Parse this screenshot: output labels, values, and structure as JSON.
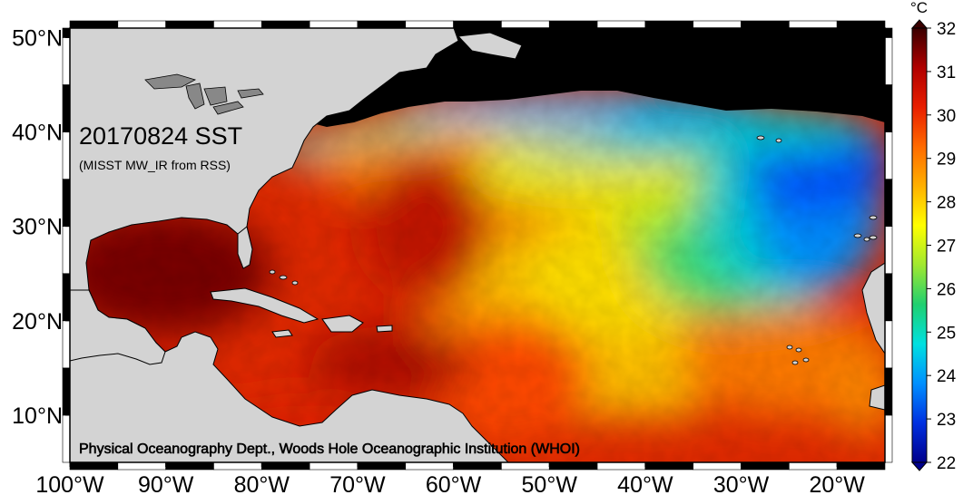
{
  "map": {
    "title": "20170824 SST",
    "subtitle": "(MISST MW_IR from RSS)",
    "credit": "Physical Oceanography Dept., Woods Hole Oceanographic Institution (WHOI)",
    "lat_ticks": [
      {
        "value": 50,
        "label": "50°N"
      },
      {
        "value": 40,
        "label": "40°N"
      },
      {
        "value": 30,
        "label": "30°N"
      },
      {
        "value": 20,
        "label": "20°N"
      },
      {
        "value": 10,
        "label": "10°N"
      }
    ],
    "lon_ticks": [
      {
        "value": -100,
        "label": "100°W"
      },
      {
        "value": -90,
        "label": "90°W"
      },
      {
        "value": -80,
        "label": "80°W"
      },
      {
        "value": -70,
        "label": "70°W"
      },
      {
        "value": -60,
        "label": "60°W"
      },
      {
        "value": -50,
        "label": "50°W"
      },
      {
        "value": -40,
        "label": "40°W"
      },
      {
        "value": -30,
        "label": "30°W"
      },
      {
        "value": -20,
        "label": "20°W"
      }
    ],
    "lon_range": [
      -100,
      -15
    ],
    "lat_range": [
      5,
      51
    ],
    "colors": {
      "land": "#d3d3d3",
      "no_data": "#000000",
      "frame": "#000000"
    }
  },
  "colorbar": {
    "unit": "°C",
    "min": 22,
    "max": 32,
    "ticks": [
      "32",
      "31",
      "30",
      "29",
      "28",
      "27",
      "26",
      "25",
      "24",
      "23",
      "22"
    ],
    "stops": [
      "#00008c",
      "#0030e0",
      "#0090ff",
      "#00e0e0",
      "#20d070",
      "#a0e830",
      "#ffff00",
      "#ffb000",
      "#ff6a00",
      "#e81e00",
      "#b00000",
      "#3a0000"
    ]
  }
}
